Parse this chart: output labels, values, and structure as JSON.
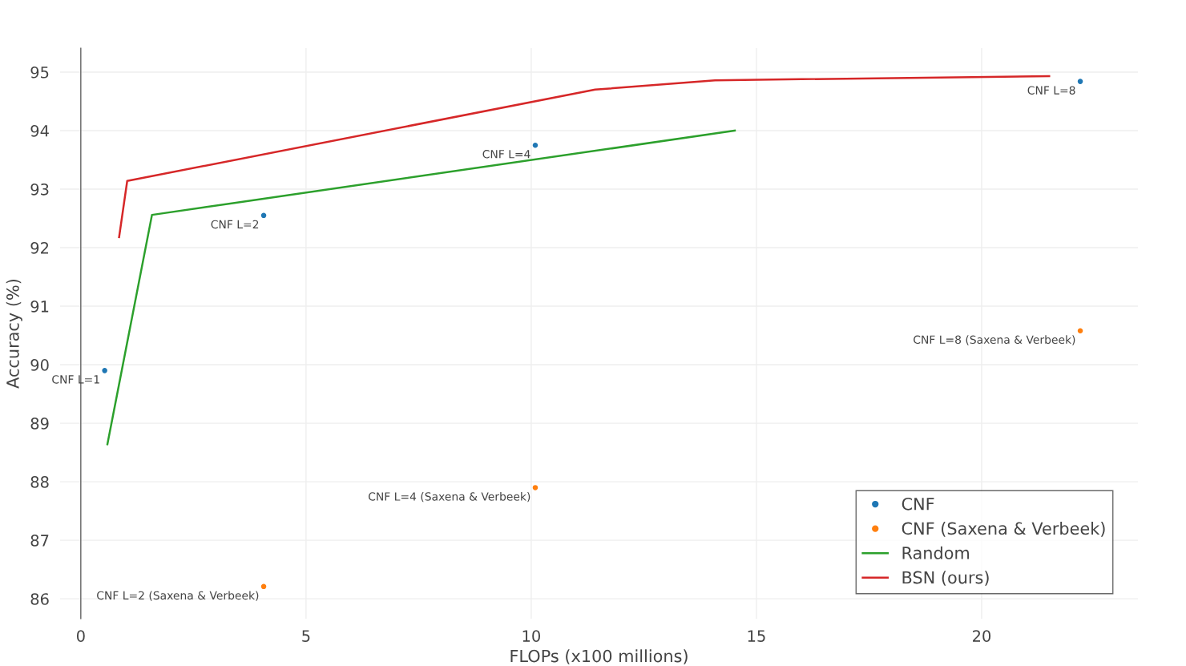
{
  "chart_data": {
    "type": "line",
    "xlabel": "FLOPs (x100 millions)",
    "ylabel": "Accuracy (%)",
    "xlim": [
      -0.46,
      23.47
    ],
    "ylim": [
      85.66,
      95.41
    ],
    "xticks": [
      0,
      5,
      10,
      15,
      20
    ],
    "yticks": [
      86,
      87,
      88,
      89,
      90,
      91,
      92,
      93,
      94,
      95
    ],
    "grid": true,
    "legend": "bottom right",
    "series": [
      {
        "name": "CNF",
        "type": "scatter",
        "marker": "circle",
        "color": "#1f77b4",
        "x": [
          0.53,
          4.06,
          10.09,
          22.19
        ],
        "values": [
          89.9,
          92.55,
          93.75,
          94.84
        ]
      },
      {
        "name": "CNF (Saxena & Verbeek)",
        "type": "scatter",
        "marker": "circle",
        "color": "#ff7f0e",
        "x": [
          4.06,
          10.09,
          22.19
        ],
        "values": [
          86.21,
          87.9,
          90.58
        ]
      },
      {
        "name": "Random",
        "color": "#2ca02c",
        "x": [
          0.59,
          1.58,
          14.52
        ],
        "values": [
          88.64,
          92.56,
          94.0
        ]
      },
      {
        "name": "BSN (ours)",
        "color": "#d62728",
        "x": [
          0.85,
          1.03,
          11.42,
          14.08,
          21.5
        ],
        "values": [
          92.18,
          93.14,
          94.7,
          94.86,
          94.93
        ]
      }
    ],
    "annotations": [
      {
        "text": "CNF L=1",
        "x": 0.53,
        "y": 89.9
      },
      {
        "text": "CNF L=2",
        "x": 4.06,
        "y": 92.55
      },
      {
        "text": "CNF L=4",
        "x": 10.09,
        "y": 93.75
      },
      {
        "text": "CNF L=8",
        "x": 22.19,
        "y": 94.84
      },
      {
        "text": "CNF L=2 (Saxena & Verbeek)",
        "x": 4.06,
        "y": 86.21
      },
      {
        "text": "CNF L=4 (Saxena & Verbeek)",
        "x": 10.09,
        "y": 87.9
      },
      {
        "text": "CNF L=8 (Saxena & Verbeek)",
        "x": 22.19,
        "y": 90.58
      }
    ]
  }
}
